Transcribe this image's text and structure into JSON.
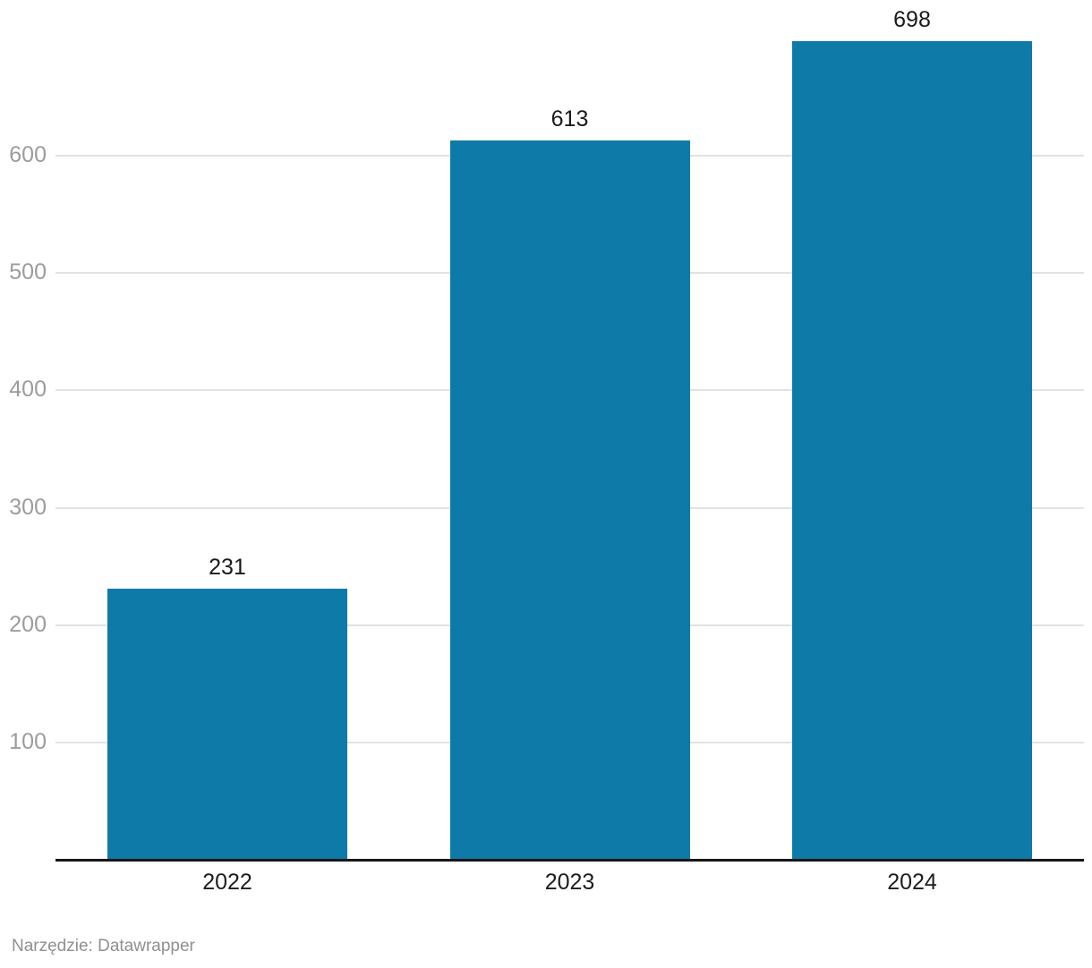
{
  "chart_data": {
    "type": "bar",
    "categories": [
      "2022",
      "2023",
      "2024"
    ],
    "values": [
      231,
      613,
      698
    ],
    "bar_labels": [
      "231",
      "613",
      "698"
    ],
    "title": "",
    "xlabel": "",
    "ylabel": "",
    "ylim": [
      0,
      700
    ],
    "yticks": [
      100,
      200,
      300,
      400,
      500,
      600
    ],
    "grid": true,
    "legend": "none"
  },
  "footer": {
    "text": "Narzędzie: Datawrapper"
  },
  "colors": {
    "bar": "#0d7aa8",
    "grid": "#e2e2e2",
    "axis": "#161616",
    "tick_label": "#9c9c9c",
    "value_label": "#1a1a1a",
    "category_label": "#1d1d1d",
    "footer_text": "#909090"
  }
}
